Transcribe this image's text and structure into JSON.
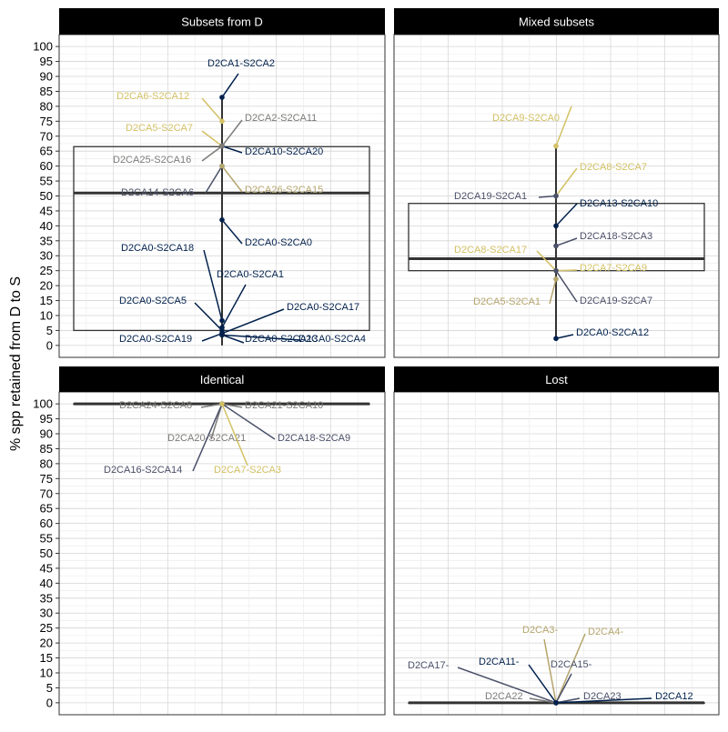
{
  "chart_data": {
    "type": "box",
    "ylabel": "% spp retained from D to S",
    "yticks": [
      0,
      5,
      10,
      15,
      20,
      25,
      30,
      35,
      40,
      45,
      50,
      55,
      60,
      65,
      70,
      75,
      80,
      85,
      90,
      95,
      100
    ],
    "grid": true,
    "colors": {
      "navy": "#00204c",
      "slate": "#4a5069",
      "gray": "#7c7b78",
      "tan": "#b5a56c",
      "gold": "#d3c164"
    },
    "panels": [
      {
        "title": "Subsets from D",
        "ylim": [
          -4,
          104
        ],
        "box": {
          "q1": 5,
          "median": 51,
          "q3": 66.5
        },
        "whisker": [
          0,
          83
        ],
        "labels": [
          {
            "text": "D2CA1-S2CA2",
            "y": 83,
            "color": "navy"
          },
          {
            "text": "D2CA6-S2CA12",
            "y": 75,
            "color": "gold"
          },
          {
            "text": "D2CA2-S2CA11",
            "y": 66.7,
            "color": "gray"
          },
          {
            "text": "D2CA5-S2CA7",
            "y": 66.7,
            "color": "gold"
          },
          {
            "text": "D2CA10-S2CA20",
            "y": 66.7,
            "color": "navy"
          },
          {
            "text": "D2CA25-S2CA16",
            "y": 66.7,
            "color": "gray"
          },
          {
            "text": "D2CA14-S2CA6",
            "y": 60,
            "color": "slate"
          },
          {
            "text": "D2CA26-S2CA15",
            "y": 60,
            "color": "tan"
          },
          {
            "text": "D2CA0-S2CA0",
            "y": 42,
            "color": "navy"
          },
          {
            "text": "D2CA0-S2CA18",
            "y": 8.3,
            "color": "navy"
          },
          {
            "text": "D2CA0-S2CA1",
            "y": 6,
            "color": "navy"
          },
          {
            "text": "D2CA0-S2CA5",
            "y": 5,
            "color": "navy"
          },
          {
            "text": "D2CA0-S2CA17",
            "y": 4,
            "color": "navy"
          },
          {
            "text": "D2CA0-S2CA19",
            "y": 4,
            "color": "navy"
          },
          {
            "text": "D2CA0-S2CA13",
            "y": 3.5,
            "color": "navy"
          },
          {
            "text": "D2CA0-S2CA4",
            "y": 3.5,
            "color": "navy"
          }
        ]
      },
      {
        "title": "Mixed subsets",
        "ylim": [
          -4,
          104
        ],
        "box": {
          "q1": 25,
          "median": 29,
          "q3": 47.5
        },
        "whisker": [
          2.3,
          66.7
        ],
        "labels": [
          {
            "text": "D2CA9-S2CA0",
            "y": 66.7,
            "color": "gold"
          },
          {
            "text": "D2CA8-S2CA7",
            "y": 50,
            "color": "gold"
          },
          {
            "text": "D2CA19-S2CA1",
            "y": 50,
            "color": "slate"
          },
          {
            "text": "D2CA13-S2CA10",
            "y": 40,
            "color": "navy"
          },
          {
            "text": "D2CA18-S2CA3",
            "y": 33.3,
            "color": "slate"
          },
          {
            "text": "D2CA8-S2CA17",
            "y": 25,
            "color": "gold"
          },
          {
            "text": "D2CA7-S2CA9",
            "y": 25,
            "color": "gold"
          },
          {
            "text": "D2CA5-S2CA1",
            "y": 22.2,
            "color": "tan"
          },
          {
            "text": "D2CA19-S2CA7",
            "y": 25,
            "color": "slate"
          },
          {
            "text": "D2CA0-S2CA12",
            "y": 2.3,
            "color": "navy"
          }
        ]
      },
      {
        "title": "Identical",
        "ylim": [
          -4,
          104
        ],
        "box": {
          "q1": 100,
          "median": 100,
          "q3": 100
        },
        "whisker": [
          100,
          100
        ],
        "labels": [
          {
            "text": "D2CA24-S2CA8",
            "y": 100,
            "color": "gray"
          },
          {
            "text": "D2CA21-S2CA10",
            "y": 100,
            "color": "gray"
          },
          {
            "text": "D2CA20-S2CA21",
            "y": 100,
            "color": "gray"
          },
          {
            "text": "D2CA18-S2CA9",
            "y": 100,
            "color": "slate"
          },
          {
            "text": "D2CA16-S2CA14",
            "y": 100,
            "color": "slate"
          },
          {
            "text": "D2CA7-S2CA3",
            "y": 100,
            "color": "gold"
          }
        ]
      },
      {
        "title": "Lost",
        "ylim": [
          -4,
          104
        ],
        "box": {
          "q1": 0,
          "median": 0,
          "q3": 0
        },
        "whisker": [
          0,
          0
        ],
        "labels": [
          {
            "text": "D2CA3-",
            "y": 0,
            "color": "tan"
          },
          {
            "text": "D2CA4-",
            "y": 0,
            "color": "tan"
          },
          {
            "text": "D2CA17-",
            "y": 0,
            "color": "slate"
          },
          {
            "text": "D2CA11-",
            "y": 0,
            "color": "navy"
          },
          {
            "text": "D2CA15-",
            "y": 0,
            "color": "slate"
          },
          {
            "text": "D2CA22",
            "y": 0,
            "color": "gray"
          },
          {
            "text": "D2CA23",
            "y": 0,
            "color": "slate"
          },
          {
            "text": "D2CA12",
            "y": 0,
            "color": "navy"
          }
        ]
      }
    ]
  }
}
